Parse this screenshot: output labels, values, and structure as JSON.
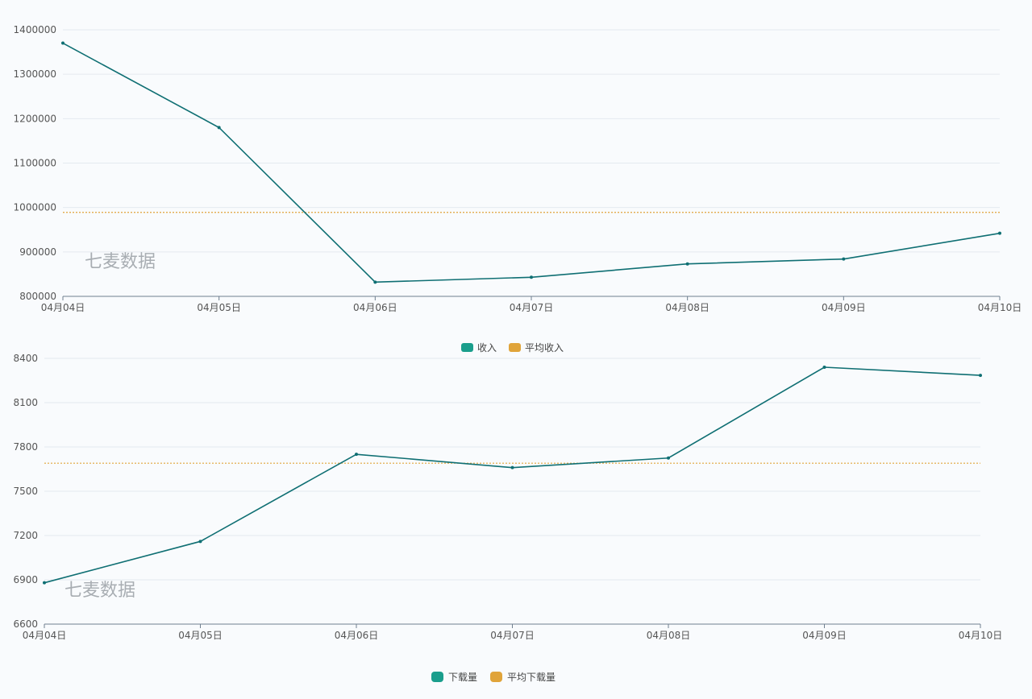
{
  "colors": {
    "series": "#0f6f73",
    "average": "#e0a43a",
    "legend_series": "#1a9e8c"
  },
  "watermark": "七麦数据",
  "chart_data": [
    {
      "type": "line",
      "categories": [
        "04月04日",
        "04月05日",
        "04月06日",
        "04月07日",
        "04月08日",
        "04月09日",
        "04月10日"
      ],
      "series": [
        {
          "name": "收入",
          "values": [
            1370000,
            1180000,
            832000,
            843000,
            873000,
            884000,
            942000
          ]
        }
      ],
      "reference_lines": [
        {
          "name": "平均收入",
          "value": 989000
        }
      ],
      "yticks": [
        800000,
        900000,
        1000000,
        1100000,
        1200000,
        1300000,
        1400000
      ],
      "ylim": [
        800000,
        1400000
      ],
      "grid": true,
      "legend": "bottom-center"
    },
    {
      "type": "line",
      "categories": [
        "04月04日",
        "04月05日",
        "04月06日",
        "04月07日",
        "04月08日",
        "04月09日",
        "04月10日"
      ],
      "series": [
        {
          "name": "下载量",
          "values": [
            6880,
            7160,
            7750,
            7660,
            7725,
            8340,
            8285
          ]
        }
      ],
      "reference_lines": [
        {
          "name": "平均下载量",
          "value": 7690
        }
      ],
      "yticks": [
        6600,
        6900,
        7200,
        7500,
        7800,
        8100,
        8400
      ],
      "ylim": [
        6600,
        8400
      ],
      "grid": true,
      "legend": "bottom-center"
    }
  ]
}
